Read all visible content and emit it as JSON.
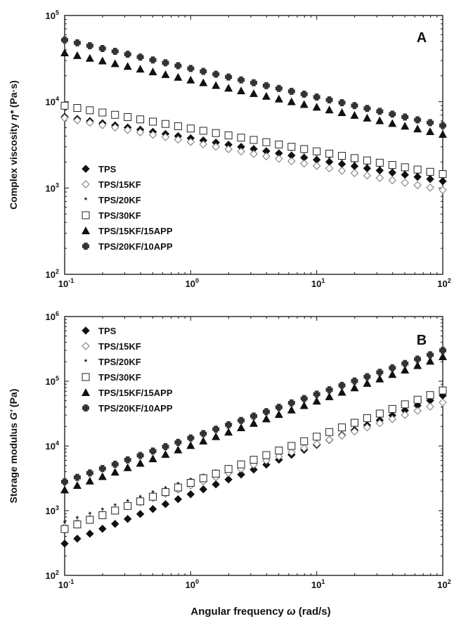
{
  "chart_data": [
    {
      "type": "scatter",
      "panel_label": "A",
      "xscale": "log",
      "yscale": "log",
      "xlim": [
        0.1,
        100
      ],
      "ylim": [
        100,
        100000
      ],
      "xticks": [
        "10",
        "10",
        "10",
        "10"
      ],
      "xtick_exps": [
        "-1",
        "0",
        "1",
        "2"
      ],
      "yticks": [
        "10",
        "10",
        "10",
        "10"
      ],
      "ytick_exps": [
        "2",
        "3",
        "4",
        "5"
      ],
      "ylabel": "Complex viscosity",
      "ylabel_symbol": "η*",
      "ylabel_unit": "(Pa·s)",
      "legend_placement": "lower-left",
      "series_params": [
        {
          "name": "TPS",
          "start": 6700,
          "end": 1200
        },
        {
          "name": "TPS/15KF",
          "start": 6500,
          "end": 950
        },
        {
          "name": "TPS/20KF",
          "start": 8800,
          "end": 1250
        },
        {
          "name": "TPS/30KF",
          "start": 9000,
          "end": 1450
        },
        {
          "name": "TPS/15KF/15APP",
          "start": 37000,
          "end": 4200
        },
        {
          "name": "TPS/20KF/10APP",
          "start": 52000,
          "end": 5300
        }
      ]
    },
    {
      "type": "scatter",
      "panel_label": "B",
      "xscale": "log",
      "yscale": "log",
      "xlim": [
        0.1,
        100
      ],
      "ylim": [
        100,
        1000000
      ],
      "xticks": [
        "10",
        "10",
        "10",
        "10"
      ],
      "xtick_exps": [
        "-1",
        "0",
        "1",
        "2"
      ],
      "yticks": [
        "10",
        "10",
        "10",
        "10",
        "10"
      ],
      "ytick_exps": [
        "2",
        "3",
        "4",
        "5",
        "6"
      ],
      "ylabel": "Storage modulus",
      "ylabel_symbol": "G'",
      "ylabel_unit": "(Pa)",
      "xlabel": "Angular frequency",
      "xlabel_symbol": "ω",
      "xlabel_unit": "(rad/s)",
      "legend_placement": "top-left",
      "series_params": [
        {
          "name": "TPS",
          "start": 310,
          "end": 60000
        },
        {
          "name": "TPS/15KF",
          "start": 560,
          "end": 47000
        },
        {
          "name": "TPS/20KF",
          "start": 650,
          "end": 62000
        },
        {
          "name": "TPS/30KF",
          "start": 520,
          "end": 72000
        },
        {
          "name": "TPS/15KF/15APP",
          "start": 2100,
          "end": 240000
        },
        {
          "name": "TPS/20KF/10APP",
          "start": 2800,
          "end": 300000
        }
      ]
    }
  ]
}
